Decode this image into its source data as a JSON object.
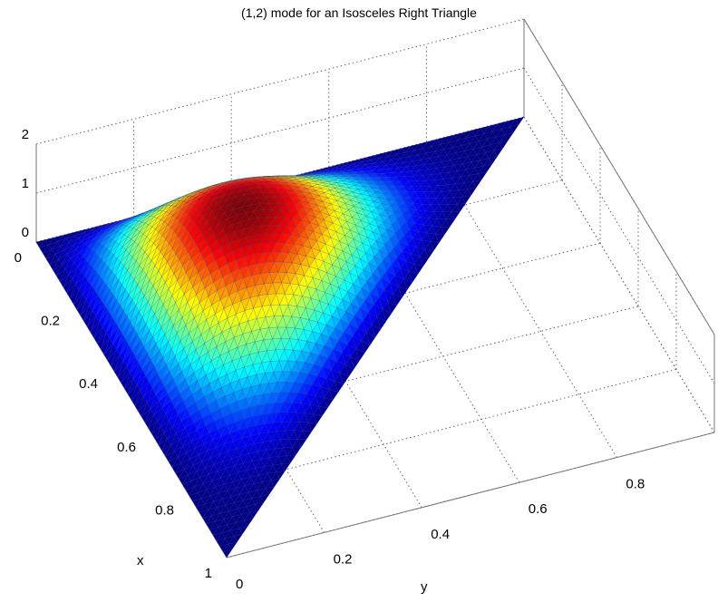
{
  "chart_data": {
    "type": "surface",
    "title": "(1,2) mode for an Isosceles Right Triangle",
    "xlabel": "x",
    "ylabel": "y",
    "zlabel": "",
    "xlim": [
      0,
      1
    ],
    "ylim": [
      0,
      1
    ],
    "zlim": [
      0,
      2
    ],
    "x_ticks": [
      "0",
      "0.2",
      "0.4",
      "0.6",
      "0.8",
      "1"
    ],
    "y_ticks": [
      "0",
      "0.2",
      "0.4",
      "0.6",
      "0.8"
    ],
    "z_ticks": [
      "0",
      "1",
      "2"
    ],
    "domain": "triangle x >= 0, y >= 0, x + y <= 1",
    "mode": "(1,2)",
    "peak": {
      "x": 0.2,
      "y": 0.2,
      "z": 1.9
    },
    "colormap": "jet",
    "grid": true
  }
}
